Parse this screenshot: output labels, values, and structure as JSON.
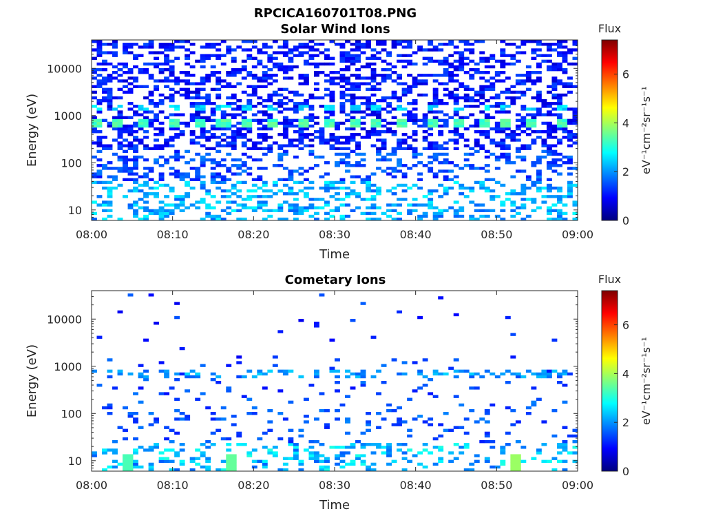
{
  "figure": {
    "title": "RPCICA160701T08.PNG"
  },
  "colors": {
    "colormap": [
      "#00007f",
      "#0000ff",
      "#007fff",
      "#00ffff",
      "#7fff7f",
      "#ffff00",
      "#ff7f00",
      "#ff0000",
      "#7f0000"
    ],
    "axis": "#262626",
    "background": "#ffffff"
  },
  "chart_data": [
    {
      "type": "heatmap",
      "title": "Solar Wind Ions",
      "xlabel": "Time",
      "ylabel": "Energy (eV)",
      "x_ticks": [
        "08:00",
        "08:10",
        "08:20",
        "08:30",
        "08:40",
        "08:50",
        "09:00"
      ],
      "xlim": [
        "08:00",
        "09:00"
      ],
      "y_scale": "log",
      "y_ticks": [
        "10",
        "100",
        "1000",
        "10000"
      ],
      "ylim": [
        6,
        40000
      ],
      "colorbar": {
        "label": "Flux",
        "units": "eV⁻¹cm⁻²sr⁻¹s⁻¹",
        "ticks": [
          "0",
          "2",
          "4",
          "6"
        ],
        "range": [
          0,
          7.4
        ]
      },
      "grid": false,
      "notes": [
        "Dense low-level (0-1) noise across all energies above ~200 eV",
        "Periodic bright peaks (~3-4) near 700-800 eV roughly every 3 minutes",
        "Moderate flux (2-3) at lowest energies (6-30 eV)"
      ],
      "peaks": [
        {
          "time": "08:00",
          "energy_eV": 700,
          "flux": 3.2
        },
        {
          "time": "08:03",
          "energy_eV": 700,
          "flux": 3.3
        },
        {
          "time": "08:06",
          "energy_eV": 700,
          "flux": 3.2
        },
        {
          "time": "08:10",
          "energy_eV": 700,
          "flux": 3.2
        },
        {
          "time": "08:13",
          "energy_eV": 700,
          "flux": 3.3
        },
        {
          "time": "08:16",
          "energy_eV": 700,
          "flux": 3.4
        },
        {
          "time": "08:19",
          "energy_eV": 700,
          "flux": 3.2
        },
        {
          "time": "08:22",
          "energy_eV": 700,
          "flux": 3.3
        },
        {
          "time": "08:26",
          "energy_eV": 700,
          "flux": 3.6
        },
        {
          "time": "08:29",
          "energy_eV": 700,
          "flux": 3.5
        },
        {
          "time": "08:32",
          "energy_eV": 700,
          "flux": 3.3
        },
        {
          "time": "08:35",
          "energy_eV": 700,
          "flux": 3.4
        },
        {
          "time": "08:38",
          "energy_eV": 700,
          "flux": 3.3
        },
        {
          "time": "08:42",
          "energy_eV": 700,
          "flux": 3.2
        },
        {
          "time": "08:45",
          "energy_eV": 700,
          "flux": 3.3
        },
        {
          "time": "08:48",
          "energy_eV": 700,
          "flux": 3.3
        },
        {
          "time": "08:51",
          "energy_eV": 700,
          "flux": 3.2
        },
        {
          "time": "08:54",
          "energy_eV": 700,
          "flux": 3.3
        },
        {
          "time": "08:58",
          "energy_eV": 700,
          "flux": 3.2
        }
      ]
    },
    {
      "type": "heatmap",
      "title": "Cometary Ions",
      "xlabel": "Time",
      "ylabel": "Energy (eV)",
      "x_ticks": [
        "08:00",
        "08:10",
        "08:20",
        "08:30",
        "08:40",
        "08:50",
        "09:00"
      ],
      "xlim": [
        "08:00",
        "09:00"
      ],
      "y_scale": "log",
      "y_ticks": [
        "10",
        "100",
        "1000",
        "10000"
      ],
      "ylim": [
        6,
        40000
      ],
      "colorbar": {
        "label": "Flux",
        "units": "eV⁻¹cm⁻²sr⁻¹s⁻¹",
        "ticks": [
          "0",
          "2",
          "4",
          "6"
        ],
        "range": [
          0,
          7.4
        ]
      },
      "grid": false,
      "notes": [
        "Sparse counts; isolated low-level pixels at high energies",
        "Repeated weak blocks near 700 eV",
        "Moderate flux (2-4) clusters below ~20 eV"
      ],
      "peaks": [
        {
          "time": "08:52",
          "energy_eV": 9,
          "flux": 3.9
        },
        {
          "time": "08:17",
          "energy_eV": 9,
          "flux": 3.5
        },
        {
          "time": "08:04",
          "energy_eV": 9,
          "flux": 3.3
        }
      ]
    }
  ]
}
